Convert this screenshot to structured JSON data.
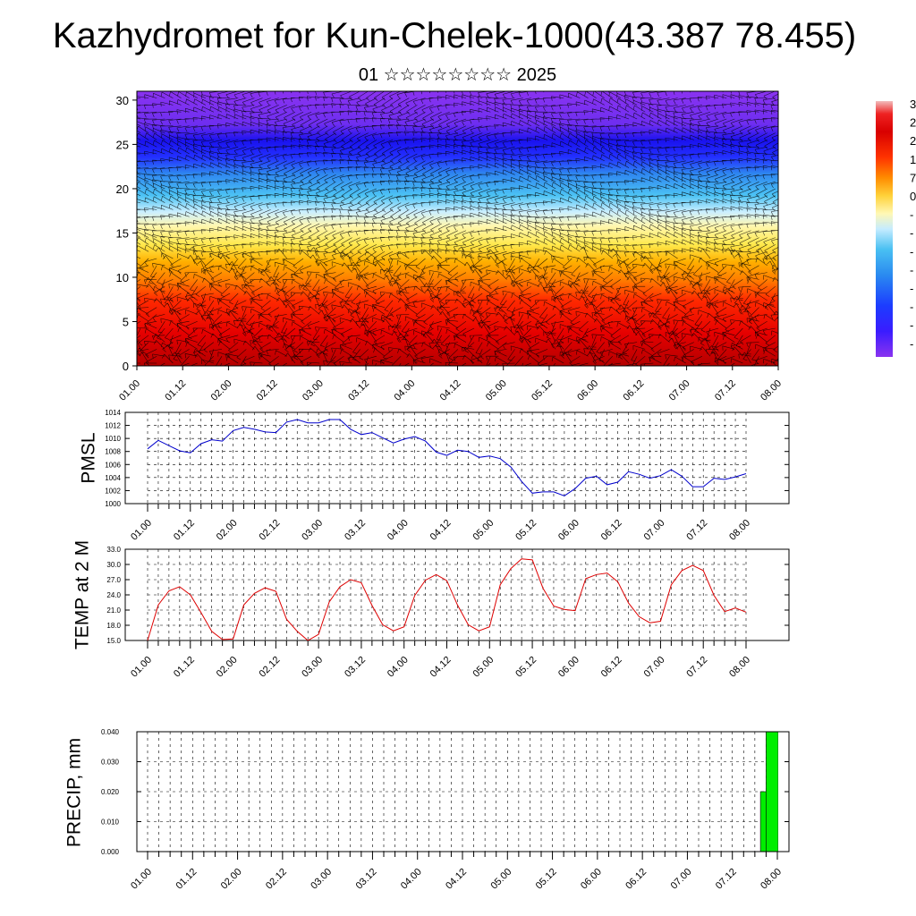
{
  "title": "Kazhydromet for Kun-Chelek-1000(43.387 78.455)",
  "subtitle": "01 ☆☆☆☆☆☆☆☆ 2025",
  "chart_data": [
    {
      "type": "heatmap",
      "title": "",
      "xlabel": "",
      "ylabel": "",
      "x_tick_labels": [
        "01.00",
        "01.12",
        "02.00",
        "02.12",
        "03.00",
        "03.12",
        "04.00",
        "04.12",
        "05.00",
        "05.12",
        "06.00",
        "06.12",
        "07.00",
        "07.12",
        "08.00"
      ],
      "y_ticks": [
        0,
        5,
        10,
        15,
        20,
        25,
        30
      ],
      "ylim": [
        0,
        31
      ],
      "colorbar_labels": [
        "3",
        "2",
        "2",
        "1",
        "7",
        "0",
        "-",
        "-",
        "-",
        "-",
        "-",
        "-",
        "-",
        "-"
      ],
      "overlay": "wind barbs",
      "colors": [
        "#d40000",
        "#ff4500",
        "#ff9a00",
        "#ffe84a",
        "#ffffcc",
        "#c2ecff",
        "#2bb3f2",
        "#2d7cf0",
        "#1414ff",
        "#7b2fe8"
      ]
    },
    {
      "type": "line",
      "ylabel": "PMSL",
      "x_tick_labels": [
        "01.00",
        "01.12",
        "02.00",
        "02.12",
        "03.00",
        "03.12",
        "04.00",
        "04.12",
        "05.00",
        "05.12",
        "06.00",
        "06.12",
        "07.00",
        "07.12",
        "08.00"
      ],
      "y_tick_labels": [
        "1000",
        "1002",
        "1004",
        "1006",
        "1008",
        "1010",
        "1012",
        "1014"
      ],
      "ylim": [
        1000,
        1014
      ],
      "series": [
        {
          "color": "#0000cc",
          "values": [
            1008.4,
            1009.7,
            1008.9,
            1008.1,
            1007.8,
            1009.2,
            1009.8,
            1009.6,
            1011.2,
            1011.7,
            1011.4,
            1011.0,
            1010.9,
            1012.5,
            1012.9,
            1012.4,
            1012.4,
            1012.9,
            1012.9,
            1011.4,
            1010.6,
            1010.9,
            1010.1,
            1009.3,
            1009.9,
            1010.3,
            1009.6,
            1007.9,
            1007.4,
            1008.2,
            1008.0,
            1007.1,
            1007.3,
            1006.9,
            1005.6,
            1003.4,
            1001.6,
            1001.8,
            1001.8,
            1001.2,
            1002.3,
            1003.9,
            1004.2,
            1002.9,
            1003.3,
            1004.9,
            1004.5,
            1003.9,
            1004.3,
            1005.2,
            1004.2,
            1002.6,
            1002.6,
            1003.9,
            1003.7,
            1004.1,
            1004.6
          ]
        }
      ]
    },
    {
      "type": "line",
      "ylabel": "TEMP at 2 M",
      "x_tick_labels": [
        "01.00",
        "01.12",
        "02.00",
        "02.12",
        "03.00",
        "03.12",
        "04.00",
        "04.12",
        "05.00",
        "05.12",
        "06.00",
        "06.12",
        "07.00",
        "07.12",
        "08.00"
      ],
      "y_tick_labels": [
        "15.0",
        "18.0",
        "21.0",
        "24.0",
        "27.0",
        "30.0",
        "33.0"
      ],
      "ylim": [
        15,
        33
      ],
      "series": [
        {
          "color": "#dd0000",
          "values": [
            15.0,
            22.0,
            24.8,
            25.6,
            24.0,
            20.5,
            16.8,
            15.2,
            15.3,
            22.0,
            24.3,
            25.4,
            24.7,
            19.2,
            16.8,
            15.0,
            16.2,
            22.6,
            25.6,
            27.0,
            26.4,
            21.9,
            18.1,
            16.9,
            17.7,
            23.9,
            26.9,
            28.0,
            26.8,
            22.0,
            18.1,
            16.9,
            17.7,
            26.0,
            29.2,
            31.1,
            30.9,
            25.3,
            21.8,
            21.1,
            20.9,
            27.2,
            28.0,
            28.3,
            26.6,
            22.4,
            19.7,
            18.5,
            18.8,
            26.0,
            28.8,
            29.8,
            28.8,
            23.9,
            20.7,
            21.4,
            20.6
          ]
        }
      ]
    },
    {
      "type": "bar",
      "ylabel": "PRECIP, mm",
      "x_tick_labels": [
        "01.00",
        "01.12",
        "02.00",
        "02.12",
        "03.00",
        "03.12",
        "04.00",
        "04.12",
        "05.00",
        "05.12",
        "06.00",
        "06.12",
        "07.00",
        "07.12",
        "08.00"
      ],
      "y_tick_labels": [
        "0.000",
        "0.010",
        "0.020",
        "0.030",
        "0.040"
      ],
      "ylim": [
        0,
        0.04
      ],
      "bars": [
        {
          "x_index": 13.75,
          "value": 0.02
        },
        {
          "x_index": 13.875,
          "value": 0.04
        }
      ],
      "color": "#00ee00"
    }
  ]
}
